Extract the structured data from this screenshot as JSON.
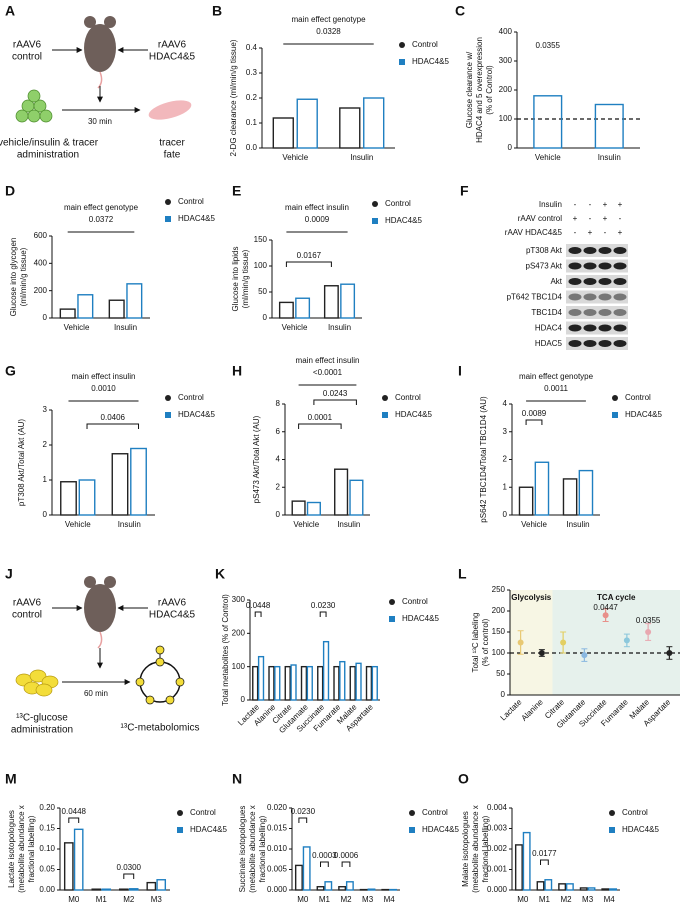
{
  "diagram_a": {
    "panel": "A",
    "left_label": [
      "rAAV6",
      "control"
    ],
    "right_label": [
      "rAAV6",
      "HDAC4&5"
    ],
    "time": "30 min",
    "start_label": [
      "vehicle/insulin & tracer",
      "administration"
    ],
    "end_label": [
      "tracer",
      "fate"
    ]
  },
  "diagram_j": {
    "panel": "J",
    "left_label": [
      "rAAV6",
      "control"
    ],
    "right_label": [
      "rAAV6",
      "HDAC4&5"
    ],
    "time": "60 min",
    "start_label": [
      "¹³C-glucose",
      "administration"
    ],
    "end_label": [
      "¹³C-metabolomics"
    ]
  },
  "blot": {
    "panel": "F",
    "header": [
      {
        "label": "Insulin",
        "signs": [
          "-",
          "-",
          "+",
          "+"
        ]
      },
      {
        "label": "rAAV control",
        "signs": [
          "+",
          "-",
          "+",
          "-"
        ]
      },
      {
        "label": "rAAV HDAC4&5",
        "signs": [
          "-",
          "+",
          "-",
          "+"
        ]
      }
    ],
    "bands": [
      "pT308 Akt",
      "pS473 Akt",
      "Akt",
      "pT642 TBC1D4",
      "TBC1D4",
      "HDAC4",
      "HDAC5"
    ]
  },
  "chart_data": [
    {
      "panel": "B",
      "type": "bar",
      "main_effect": {
        "label": "main effect genotype",
        "p": "0.0328"
      },
      "ylabel": [
        "2-DG clearance (ml/min/g tissue)"
      ],
      "categories": [
        "Vehicle",
        "Insulin"
      ],
      "series": [
        {
          "name": "Control",
          "color": "#222222",
          "marker": "circle",
          "values": [
            0.12,
            0.16
          ]
        },
        {
          "name": "HDAC4&5",
          "color": "#1f7fc1",
          "marker": "square",
          "values": [
            0.195,
            0.2
          ]
        }
      ],
      "ylim": [
        0,
        0.4
      ],
      "yticks": [
        {
          "value": 0,
          "label": "0.0"
        },
        {
          "value": 0.1,
          "label": "0.1"
        },
        {
          "value": 0.2,
          "label": "0.2"
        },
        {
          "value": 0.3,
          "label": "0.3"
        },
        {
          "value": 0.4,
          "label": "0.4"
        }
      ]
    },
    {
      "panel": "C",
      "type": "bar",
      "ylabel": [
        "Glucose clearance w/",
        "HDAC4 and 5 overexpression",
        "(% of Control)"
      ],
      "categories": [
        "Vehicle",
        "Insulin"
      ],
      "values": [
        180,
        150
      ],
      "color": "#1f7fc1",
      "reference_line": 100,
      "annotations": [
        "0.0355"
      ],
      "ylim": [
        0,
        400
      ],
      "yticks": [
        0,
        100,
        200,
        300,
        400
      ]
    },
    {
      "panel": "D",
      "type": "bar",
      "main_effect": {
        "label": "main effect genotype",
        "p": "0.0372"
      },
      "ylabel": [
        "Glucose into glycogen",
        "(ml/min/g tissue)"
      ],
      "categories": [
        "Vehicle",
        "Insulin"
      ],
      "series": [
        {
          "name": "Control",
          "color": "#222222",
          "marker": "circle",
          "values": [
            65,
            130
          ]
        },
        {
          "name": "HDAC4&5",
          "color": "#1f7fc1",
          "marker": "square",
          "values": [
            170,
            250
          ]
        }
      ],
      "ylim": [
        0,
        600
      ],
      "yticks": [
        0,
        200,
        400,
        600
      ]
    },
    {
      "panel": "E",
      "type": "bar",
      "main_effect": {
        "label": "main effect insulin",
        "p": "0.0009"
      },
      "annotations": [
        "0.0167"
      ],
      "ylabel": [
        "Glucose into lipids",
        "(ml/min/g tissue)"
      ],
      "categories": [
        "Vehicle",
        "Insulin"
      ],
      "series": [
        {
          "name": "Control",
          "color": "#222222",
          "marker": "circle",
          "values": [
            30,
            62
          ]
        },
        {
          "name": "HDAC4&5",
          "color": "#1f7fc1",
          "marker": "square",
          "values": [
            38,
            65
          ]
        }
      ],
      "ylim": [
        0,
        150
      ],
      "yticks": [
        0,
        50,
        100,
        150
      ]
    },
    {
      "panel": "G",
      "type": "bar",
      "main_effect": {
        "label": "main effect insulin",
        "p": "0.0010"
      },
      "annotations": [
        "0.0406"
      ],
      "ylabel": [
        "pT308 Akt/Total Akt (AU)"
      ],
      "categories": [
        "Vehicle",
        "Insulin"
      ],
      "series": [
        {
          "name": "Control",
          "color": "#222222",
          "marker": "circle",
          "values": [
            0.95,
            1.75
          ]
        },
        {
          "name": "HDAC4&5",
          "color": "#1f7fc1",
          "marker": "square",
          "values": [
            1.0,
            1.9
          ]
        }
      ],
      "ylim": [
        0,
        3
      ],
      "yticks": [
        0,
        1,
        2,
        3
      ]
    },
    {
      "panel": "H",
      "type": "bar",
      "main_effect": {
        "label": "main effect insulin",
        "p": "<0.0001"
      },
      "annotations": [
        "0.0243",
        "0.0001"
      ],
      "ylabel": [
        "pS473 Akt/Total Akt (AU)"
      ],
      "categories": [
        "Vehicle",
        "Insulin"
      ],
      "series": [
        {
          "name": "Control",
          "color": "#222222",
          "marker": "circle",
          "values": [
            1.0,
            3.3
          ]
        },
        {
          "name": "HDAC4&5",
          "color": "#1f7fc1",
          "marker": "square",
          "values": [
            0.9,
            2.5
          ]
        }
      ],
      "ylim": [
        0,
        8
      ],
      "yticks": [
        0,
        2,
        4,
        6,
        8
      ]
    },
    {
      "panel": "I",
      "type": "bar",
      "main_effect": {
        "label": "main effect genotype",
        "p": "0.0011"
      },
      "annotations": [
        "0.0089"
      ],
      "ylabel": [
        "pS642 TBC1D4/Total TBC1D4 (AU)"
      ],
      "categories": [
        "Vehicle",
        "Insulin"
      ],
      "series": [
        {
          "name": "Control",
          "color": "#222222",
          "marker": "circle",
          "values": [
            1.0,
            1.3
          ]
        },
        {
          "name": "HDAC4&5",
          "color": "#1f7fc1",
          "marker": "square",
          "values": [
            1.9,
            1.6
          ]
        }
      ],
      "ylim": [
        0,
        4
      ],
      "yticks": [
        0,
        1,
        2,
        3,
        4
      ]
    },
    {
      "panel": "K",
      "type": "bar",
      "annotations": [
        "0.0448",
        "0.0230"
      ],
      "ylabel": [
        "Total metabolites (% of Control)"
      ],
      "categories": [
        "Lactate",
        "Alanine",
        "Citrate",
        "Glutamate",
        "Succinate",
        "Fumarate",
        "Malate",
        "Aspartate"
      ],
      "series": [
        {
          "name": "Control",
          "color": "#222222",
          "marker": "circle",
          "values": [
            100,
            100,
            100,
            100,
            100,
            100,
            100,
            100
          ]
        },
        {
          "name": "HDAC4&5",
          "color": "#1f7fc1",
          "marker": "square",
          "values": [
            130,
            100,
            105,
            100,
            175,
            115,
            110,
            100
          ]
        }
      ],
      "ylim": [
        0,
        300
      ],
      "yticks": [
        0,
        100,
        200,
        300
      ]
    },
    {
      "panel": "L",
      "type": "dot",
      "sections": [
        "Glycolysis",
        "TCA cycle"
      ],
      "annotations": [
        "0.0447",
        "0.0355"
      ],
      "ylabel": [
        "Total ¹³C labeling",
        "(% of control)"
      ],
      "categories": [
        "Lactate",
        "Alanine",
        "Citrate",
        "Glutamate",
        "Succinate",
        "Fumarate",
        "Malate",
        "Aspartate"
      ],
      "values": [
        125,
        100,
        125,
        95,
        190,
        130,
        150,
        100
      ],
      "errors": [
        28,
        8,
        25,
        15,
        15,
        15,
        20,
        15
      ],
      "colors": [
        "#e8c872",
        "#222222",
        "#e3cf62",
        "#8ab8e0",
        "#e8908a",
        "#8cc8dc",
        "#e8a8b0",
        "#222222"
      ],
      "reference_line": 100,
      "ylim": [
        0,
        250
      ],
      "yticks": [
        0,
        50,
        100,
        150,
        200,
        250
      ]
    },
    {
      "panel": "M",
      "type": "bar",
      "annotations": [
        "0.0448",
        "0.0300"
      ],
      "ylabel": [
        "Lactate isotopologues",
        "(metabolite abundance x",
        "fractional labelling)"
      ],
      "categories": [
        "M0",
        "M1",
        "M2",
        "M3"
      ],
      "series": [
        {
          "name": "Control",
          "color": "#222222",
          "marker": "circle",
          "values": [
            0.115,
            0.002,
            0.002,
            0.018
          ]
        },
        {
          "name": "HDAC4&5",
          "color": "#1f7fc1",
          "marker": "square",
          "values": [
            0.148,
            0.002,
            0.003,
            0.025
          ]
        }
      ],
      "ylim": [
        0,
        0.2
      ],
      "yticks": [
        {
          "value": 0,
          "label": "0.00"
        },
        {
          "value": 0.05,
          "label": "0.05"
        },
        {
          "value": 0.1,
          "label": "0.10"
        },
        {
          "value": 0.15,
          "label": "0.15"
        },
        {
          "value": 0.2,
          "label": "0.20"
        }
      ]
    },
    {
      "panel": "N",
      "type": "bar",
      "annotations": [
        "0.0230",
        "0.0003",
        "0.0006"
      ],
      "ylabel": [
        "Succinate isotopologues",
        "(metabolite abundance x",
        "fractional labelling)"
      ],
      "categories": [
        "M0",
        "M1",
        "M2",
        "M3",
        "M4"
      ],
      "series": [
        {
          "name": "Control",
          "color": "#222222",
          "marker": "circle",
          "values": [
            0.006,
            0.0008,
            0.0008,
            0.0001,
            0.0001
          ]
        },
        {
          "name": "HDAC4&5",
          "color": "#1f7fc1",
          "marker": "square",
          "values": [
            0.0105,
            0.002,
            0.002,
            0.0002,
            0.0001
          ]
        }
      ],
      "ylim": [
        0,
        0.02
      ],
      "yticks": [
        {
          "value": 0,
          "label": "0.000"
        },
        {
          "value": 0.005,
          "label": "0.005"
        },
        {
          "value": 0.01,
          "label": "0.010"
        },
        {
          "value": 0.015,
          "label": "0.015"
        },
        {
          "value": 0.02,
          "label": "0.020"
        }
      ]
    },
    {
      "panel": "O",
      "type": "bar",
      "annotations": [
        "0.0177"
      ],
      "ylabel": [
        "Malate isotopologues",
        "(metabolite abundance x",
        "fractional labelling)"
      ],
      "categories": [
        "M0",
        "M1",
        "M2",
        "M3",
        "M4"
      ],
      "series": [
        {
          "name": "Control",
          "color": "#222222",
          "marker": "circle",
          "values": [
            0.0022,
            0.0004,
            0.0003,
            0.0001,
            5e-05
          ]
        },
        {
          "name": "HDAC4&5",
          "color": "#1f7fc1",
          "marker": "square",
          "values": [
            0.0028,
            0.0005,
            0.0003,
            0.0001,
            5e-05
          ]
        }
      ],
      "ylim": [
        0,
        0.004
      ],
      "yticks": [
        {
          "value": 0,
          "label": "0.000"
        },
        {
          "value": 0.001,
          "label": "0.001"
        },
        {
          "value": 0.002,
          "label": "0.002"
        },
        {
          "value": 0.003,
          "label": "0.003"
        },
        {
          "value": 0.004,
          "label": "0.004"
        }
      ]
    }
  ]
}
